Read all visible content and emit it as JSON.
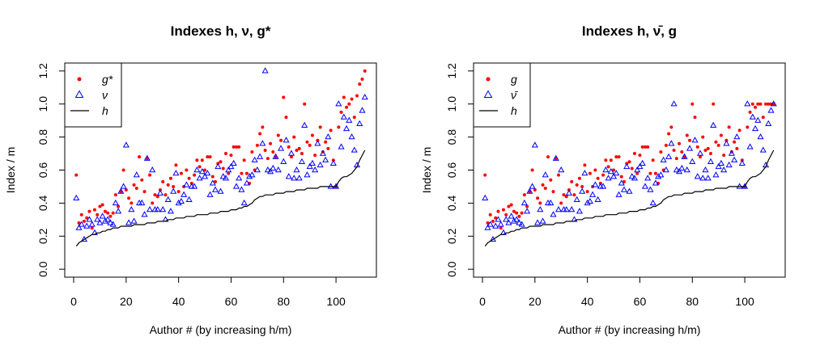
{
  "chart_data": [
    {
      "type": "scatter",
      "title": "Indexes h, ν, g*",
      "xlabel": "Author # (by increasing h/m)",
      "ylabel": "Index / m",
      "xlim": [
        -3.4,
        115.4
      ],
      "ylim": [
        -0.048,
        1.248
      ],
      "xticks": [
        0,
        20,
        40,
        60,
        80,
        100
      ],
      "yticks": [
        {
          "value": 0,
          "label": "0.0"
        },
        0.2,
        0.4,
        0.6,
        0.8,
        {
          "value": 1,
          "label": "1.0"
        },
        1.2
      ],
      "legend": "topleft",
      "x": [
        1,
        2,
        3,
        4,
        5,
        6,
        7,
        8,
        9,
        10,
        11,
        12,
        13,
        14,
        15,
        16,
        17,
        18,
        19,
        20,
        21,
        22,
        23,
        24,
        25,
        26,
        27,
        28,
        29,
        30,
        31,
        32,
        33,
        34,
        35,
        36,
        37,
        38,
        39,
        40,
        41,
        42,
        43,
        44,
        45,
        46,
        47,
        48,
        49,
        50,
        51,
        52,
        53,
        54,
        55,
        56,
        57,
        58,
        59,
        60,
        61,
        62,
        63,
        64,
        65,
        66,
        67,
        68,
        69,
        70,
        71,
        72,
        73,
        74,
        75,
        76,
        77,
        78,
        79,
        80,
        81,
        82,
        83,
        84,
        85,
        86,
        87,
        88,
        89,
        90,
        91,
        92,
        93,
        94,
        95,
        96,
        97,
        98,
        99,
        100,
        101,
        102,
        103,
        104,
        105,
        106,
        107,
        108,
        109,
        110,
        111
      ],
      "series": [
        {
          "name": "g*",
          "color": "#ff0000",
          "marker": "dot",
          "values": [
            0.57,
            0.28,
            0.33,
            0.29,
            0.31,
            0.35,
            0.25,
            0.36,
            0.33,
            0.38,
            0.39,
            0.35,
            0.34,
            0.32,
            0.34,
            0.45,
            0.38,
            0.47,
            0.6,
            0.48,
            0.43,
            0.4,
            0.51,
            0.49,
            0.68,
            0.54,
            0.47,
            0.67,
            0.57,
            0.4,
            0.45,
            0.44,
            0.48,
            0.53,
            0.45,
            0.51,
            0.55,
            0.5,
            0.63,
            0.47,
            0.58,
            0.5,
            0.6,
            0.55,
            0.52,
            0.57,
            0.66,
            0.62,
            0.66,
            0.6,
            0.68,
            0.68,
            0.56,
            0.53,
            0.64,
            0.65,
            0.61,
            0.7,
            0.58,
            0.69,
            0.74,
            0.74,
            0.74,
            0.58,
            0.66,
            0.58,
            0.52,
            0.71,
            0.6,
            0.75,
            0.82,
            0.86,
            0.72,
            0.67,
            0.76,
            0.71,
            0.68,
            0.81,
            0.78,
            1.04,
            0.92,
            0.74,
            0.68,
            0.8,
            0.72,
            0.73,
            0.7,
            1.0,
            0.77,
            0.75,
            0.81,
            0.69,
            0.78,
            0.86,
            0.71,
            0.77,
            0.73,
            0.84,
            0.66,
            0.5,
            0.86,
            0.95,
            1.04,
            0.98,
            1.0,
            1.03,
            0.92,
            1.05,
            1.12,
            1.15,
            1.2
          ]
        },
        {
          "name": "ν",
          "color": "#0000ff",
          "marker": "triangle",
          "values": [
            0.43,
            0.25,
            0.27,
            0.18,
            0.26,
            0.3,
            0.27,
            0.22,
            0.3,
            0.28,
            0.32,
            0.29,
            0.3,
            0.28,
            0.27,
            0.4,
            0.35,
            0.47,
            0.5,
            0.75,
            0.28,
            0.36,
            0.29,
            0.57,
            0.4,
            0.4,
            0.33,
            0.67,
            0.36,
            0.6,
            0.36,
            0.36,
            0.46,
            0.36,
            0.3,
            0.42,
            0.35,
            0.47,
            0.58,
            0.4,
            0.41,
            0.45,
            0.51,
            0.42,
            0.5,
            0.5,
            0.6,
            0.55,
            0.59,
            0.56,
            0.58,
            0.45,
            0.52,
            0.48,
            0.62,
            0.47,
            0.56,
            0.55,
            0.6,
            0.62,
            0.64,
            0.5,
            0.55,
            0.48,
            0.4,
            0.52,
            0.56,
            0.57,
            0.66,
            0.6,
            0.68,
            0.76,
            1.2,
            0.6,
            0.59,
            0.61,
            0.68,
            0.6,
            0.73,
            0.65,
            0.78,
            0.56,
            0.7,
            0.55,
            0.6,
            0.55,
            0.65,
            0.87,
            0.57,
            0.62,
            0.64,
            0.6,
            0.76,
            0.63,
            0.7,
            0.66,
            0.8,
            0.5,
            0.64,
            0.5,
            1.0,
            0.74,
            0.92,
            0.85,
            0.9,
            0.8,
            0.72,
            0.63,
            0.88,
            0.96,
            1.04
          ]
        },
        {
          "name": "h",
          "color": "#000000",
          "marker": "line",
          "values": [
            0.14,
            0.16,
            0.17,
            0.18,
            0.19,
            0.2,
            0.21,
            0.21,
            0.22,
            0.22,
            0.23,
            0.23,
            0.24,
            0.24,
            0.25,
            0.25,
            0.25,
            0.26,
            0.26,
            0.26,
            0.26,
            0.26,
            0.27,
            0.27,
            0.27,
            0.27,
            0.27,
            0.28,
            0.28,
            0.28,
            0.28,
            0.29,
            0.29,
            0.29,
            0.29,
            0.3,
            0.3,
            0.3,
            0.31,
            0.31,
            0.31,
            0.31,
            0.32,
            0.32,
            0.32,
            0.32,
            0.33,
            0.33,
            0.33,
            0.33,
            0.33,
            0.34,
            0.34,
            0.34,
            0.34,
            0.35,
            0.35,
            0.35,
            0.35,
            0.36,
            0.36,
            0.36,
            0.37,
            0.37,
            0.38,
            0.38,
            0.39,
            0.4,
            0.42,
            0.43,
            0.44,
            0.44,
            0.45,
            0.45,
            0.45,
            0.45,
            0.46,
            0.46,
            0.46,
            0.46,
            0.47,
            0.47,
            0.47,
            0.47,
            0.48,
            0.48,
            0.48,
            0.48,
            0.49,
            0.49,
            0.49,
            0.49,
            0.49,
            0.5,
            0.5,
            0.5,
            0.5,
            0.5,
            0.5,
            0.5,
            0.53,
            0.55,
            0.56,
            0.56,
            0.57,
            0.58,
            0.6,
            0.62,
            0.66,
            0.69,
            0.72
          ]
        }
      ]
    },
    {
      "type": "scatter",
      "title": "Indexes h, ν̄, g",
      "xlabel": "Author # (by increasing h/m)",
      "ylabel": "Index / m",
      "xlim": [
        -3.4,
        115.4
      ],
      "ylim": [
        -0.048,
        1.248
      ],
      "xticks": [
        0,
        20,
        40,
        60,
        80,
        100
      ],
      "yticks": [
        {
          "value": 0,
          "label": "0.0"
        },
        0.2,
        0.4,
        0.6,
        0.8,
        {
          "value": 1,
          "label": "1.0"
        },
        1.2
      ],
      "legend": "topleft",
      "x": [
        1,
        2,
        3,
        4,
        5,
        6,
        7,
        8,
        9,
        10,
        11,
        12,
        13,
        14,
        15,
        16,
        17,
        18,
        19,
        20,
        21,
        22,
        23,
        24,
        25,
        26,
        27,
        28,
        29,
        30,
        31,
        32,
        33,
        34,
        35,
        36,
        37,
        38,
        39,
        40,
        41,
        42,
        43,
        44,
        45,
        46,
        47,
        48,
        49,
        50,
        51,
        52,
        53,
        54,
        55,
        56,
        57,
        58,
        59,
        60,
        61,
        62,
        63,
        64,
        65,
        66,
        67,
        68,
        69,
        70,
        71,
        72,
        73,
        74,
        75,
        76,
        77,
        78,
        79,
        80,
        81,
        82,
        83,
        84,
        85,
        86,
        87,
        88,
        89,
        90,
        91,
        92,
        93,
        94,
        95,
        96,
        97,
        98,
        99,
        100,
        101,
        102,
        103,
        104,
        105,
        106,
        107,
        108,
        109,
        110,
        111
      ],
      "series": [
        {
          "name": "g",
          "color": "#ff0000",
          "marker": "dot",
          "values": [
            0.57,
            0.28,
            0.33,
            0.29,
            0.31,
            0.35,
            0.25,
            0.36,
            0.33,
            0.38,
            0.39,
            0.35,
            0.34,
            0.32,
            0.34,
            0.45,
            0.38,
            0.47,
            0.6,
            0.48,
            0.43,
            0.4,
            0.51,
            0.49,
            0.68,
            0.54,
            0.47,
            0.67,
            0.57,
            0.4,
            0.45,
            0.44,
            0.48,
            0.53,
            0.45,
            0.51,
            0.55,
            0.5,
            0.63,
            0.47,
            0.58,
            0.5,
            0.6,
            0.55,
            0.52,
            0.57,
            0.66,
            0.62,
            0.66,
            0.6,
            0.68,
            0.68,
            0.56,
            0.53,
            0.64,
            0.65,
            0.61,
            0.7,
            0.58,
            0.69,
            0.74,
            0.74,
            0.74,
            0.58,
            0.66,
            0.58,
            0.52,
            0.71,
            0.6,
            0.75,
            0.82,
            0.86,
            0.72,
            0.67,
            0.76,
            0.71,
            0.68,
            0.81,
            0.78,
            1.0,
            0.92,
            0.74,
            0.68,
            0.8,
            0.72,
            0.73,
            0.7,
            1.0,
            0.77,
            0.75,
            0.81,
            0.69,
            0.78,
            0.86,
            0.71,
            0.77,
            0.73,
            0.84,
            0.66,
            0.5,
            0.86,
            0.95,
            1.0,
            0.98,
            1.0,
            1.0,
            0.92,
            1.0,
            1.0,
            1.0,
            1.0
          ]
        },
        {
          "name": "ν̄",
          "color": "#0000ff",
          "marker": "triangle",
          "values": [
            0.43,
            0.25,
            0.27,
            0.18,
            0.26,
            0.3,
            0.27,
            0.22,
            0.3,
            0.28,
            0.32,
            0.29,
            0.3,
            0.28,
            0.27,
            0.4,
            0.35,
            0.47,
            0.5,
            0.75,
            0.28,
            0.36,
            0.29,
            0.57,
            0.4,
            0.4,
            0.33,
            0.67,
            0.36,
            0.6,
            0.36,
            0.36,
            0.46,
            0.36,
            0.3,
            0.42,
            0.35,
            0.47,
            0.58,
            0.4,
            0.41,
            0.45,
            0.51,
            0.42,
            0.5,
            0.5,
            0.6,
            0.55,
            0.59,
            0.56,
            0.58,
            0.45,
            0.52,
            0.48,
            0.62,
            0.47,
            0.56,
            0.55,
            0.6,
            0.62,
            0.64,
            0.5,
            0.55,
            0.48,
            0.4,
            0.52,
            0.56,
            0.57,
            0.66,
            0.6,
            0.68,
            0.76,
            1.0,
            0.6,
            0.59,
            0.61,
            0.68,
            0.6,
            0.73,
            0.65,
            0.78,
            0.56,
            0.7,
            0.55,
            0.6,
            0.55,
            0.65,
            0.87,
            0.57,
            0.62,
            0.64,
            0.6,
            0.76,
            0.63,
            0.7,
            0.66,
            0.8,
            0.5,
            0.64,
            0.5,
            1.0,
            0.74,
            0.92,
            0.85,
            0.9,
            0.8,
            0.72,
            0.63,
            0.88,
            0.96,
            1.0
          ]
        },
        {
          "name": "h",
          "color": "#000000",
          "marker": "line",
          "values": [
            0.14,
            0.16,
            0.17,
            0.18,
            0.19,
            0.2,
            0.21,
            0.21,
            0.22,
            0.22,
            0.23,
            0.23,
            0.24,
            0.24,
            0.25,
            0.25,
            0.25,
            0.26,
            0.26,
            0.26,
            0.26,
            0.26,
            0.27,
            0.27,
            0.27,
            0.27,
            0.27,
            0.28,
            0.28,
            0.28,
            0.28,
            0.29,
            0.29,
            0.29,
            0.29,
            0.3,
            0.3,
            0.3,
            0.31,
            0.31,
            0.31,
            0.31,
            0.32,
            0.32,
            0.32,
            0.32,
            0.33,
            0.33,
            0.33,
            0.33,
            0.33,
            0.34,
            0.34,
            0.34,
            0.34,
            0.35,
            0.35,
            0.35,
            0.35,
            0.36,
            0.36,
            0.36,
            0.37,
            0.37,
            0.38,
            0.38,
            0.39,
            0.4,
            0.42,
            0.43,
            0.44,
            0.44,
            0.45,
            0.45,
            0.45,
            0.45,
            0.46,
            0.46,
            0.46,
            0.46,
            0.47,
            0.47,
            0.47,
            0.47,
            0.48,
            0.48,
            0.48,
            0.48,
            0.49,
            0.49,
            0.49,
            0.49,
            0.49,
            0.5,
            0.5,
            0.5,
            0.5,
            0.5,
            0.5,
            0.5,
            0.53,
            0.55,
            0.56,
            0.56,
            0.57,
            0.58,
            0.6,
            0.62,
            0.66,
            0.69,
            0.72
          ]
        }
      ]
    }
  ]
}
